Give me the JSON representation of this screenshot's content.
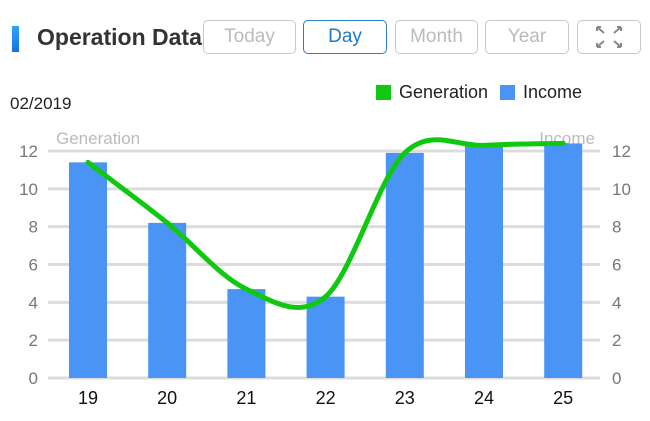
{
  "header": {
    "title": "Operation Data",
    "buttons": [
      "Today",
      "Day",
      "Month",
      "Year"
    ],
    "active": "Day",
    "expand_icon": "fullscreen-icon"
  },
  "period": "02/2019",
  "colors": {
    "generation": "#11c811",
    "income": "#4a94f5",
    "accent": "#1e78c8"
  },
  "chart_data": {
    "type": "bar+line",
    "categories": [
      "19",
      "20",
      "21",
      "22",
      "23",
      "24",
      "25"
    ],
    "series": [
      {
        "name": "Generation",
        "type": "line",
        "axis": "left",
        "values": [
          11.4,
          8.2,
          4.7,
          4.3,
          11.9,
          12.3,
          12.4
        ]
      },
      {
        "name": "Income",
        "type": "bar",
        "axis": "right",
        "values": [
          11.4,
          8.2,
          4.7,
          4.3,
          11.9,
          12.3,
          12.4
        ]
      }
    ],
    "ylabel_left": "Generation",
    "ylabel_right": "Income",
    "ylim": [
      0,
      12
    ],
    "yticks": [
      "0",
      "2",
      "4",
      "6",
      "8",
      "10",
      "12"
    ],
    "grid": true,
    "legend": "top-right"
  }
}
